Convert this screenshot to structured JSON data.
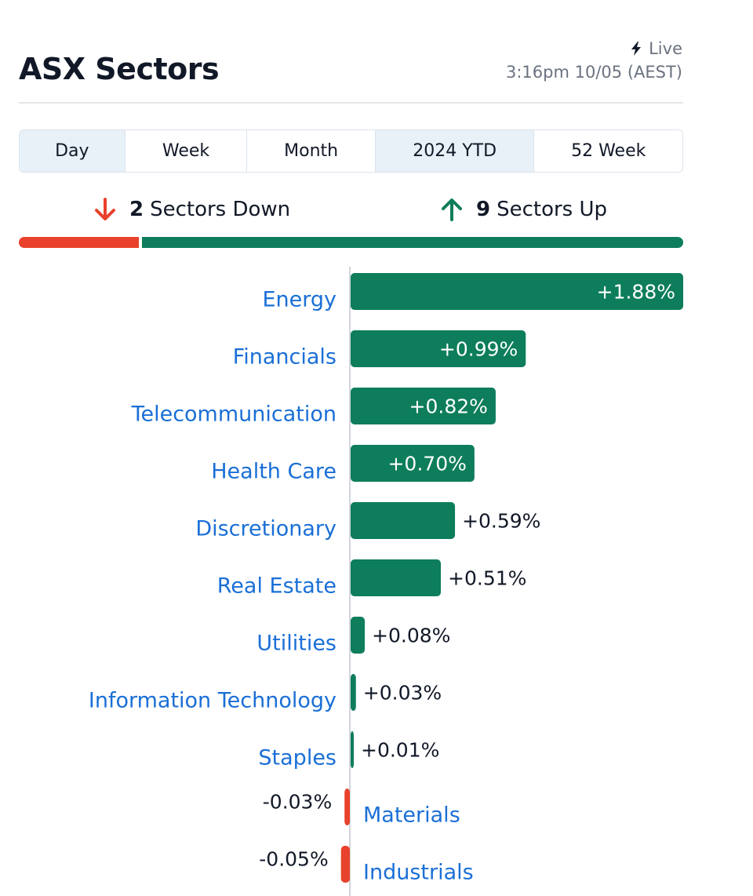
{
  "header": {
    "title": "ASX Sectors",
    "live_label": "Live",
    "live_icon": "lightning-icon",
    "timestamp": "3:16pm 10/05 (AEST)"
  },
  "tabs": [
    {
      "label": "Day",
      "active": true
    },
    {
      "label": "Week",
      "active": false
    },
    {
      "label": "Month",
      "active": false
    },
    {
      "label": "2024 YTD",
      "active": true
    },
    {
      "label": "52 Week",
      "active": false
    }
  ],
  "summary": {
    "down_count": "2",
    "down_text": "Sectors Down",
    "up_count": "9",
    "up_text": "Sectors Up"
  },
  "colors": {
    "up": "#0d7d5b",
    "down": "#e8412c",
    "label": "#1a6fd6"
  },
  "chart_data": {
    "type": "bar",
    "orientation": "horizontal",
    "categories": [
      "Energy",
      "Financials",
      "Telecommunication",
      "Health Care",
      "Discretionary",
      "Real Estate",
      "Utilities",
      "Information Technology",
      "Staples",
      "Materials",
      "Industrials"
    ],
    "values": [
      1.88,
      0.99,
      0.82,
      0.7,
      0.59,
      0.51,
      0.08,
      0.03,
      0.01,
      -0.03,
      -0.05
    ],
    "value_labels": [
      "+1.88%",
      "+0.99%",
      "+0.82%",
      "+0.70%",
      "+0.59%",
      "+0.51%",
      "+0.08%",
      "+0.03%",
      "+0.01%",
      "-0.03%",
      "-0.05%"
    ],
    "title": "",
    "xlabel": "",
    "ylabel": ""
  }
}
